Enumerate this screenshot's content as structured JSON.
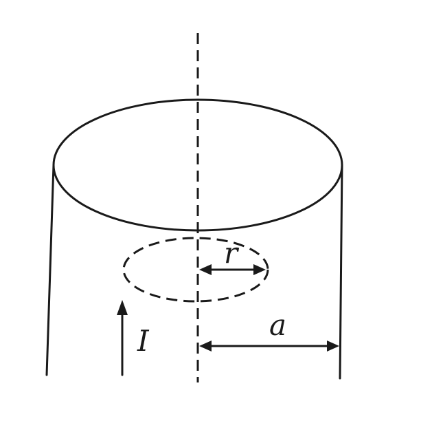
{
  "labels": {
    "radius_inner": "r",
    "radius_outer": "a",
    "current": "I"
  }
}
